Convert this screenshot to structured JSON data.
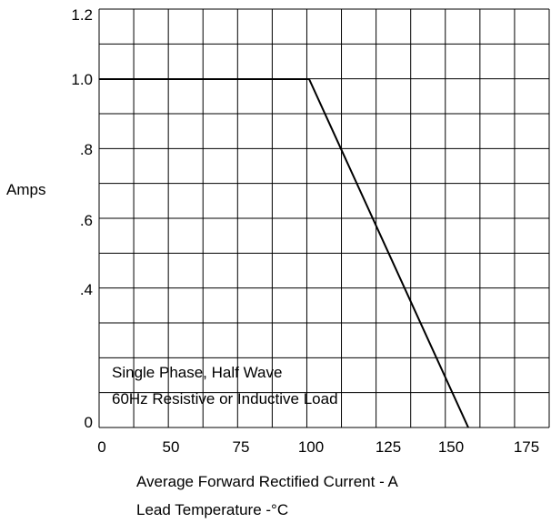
{
  "chart_data": {
    "type": "line",
    "ylabel": "Amps",
    "xlabel_lines": [
      "Average Forward Rectified Current  - A",
      "Lead Temperature  -°C"
    ],
    "annotation_lines": [
      "Single Phase, Half Wave",
      "60Hz Resistive or Inductive Load"
    ],
    "x_ticks": [
      "0",
      "50",
      "75",
      "100",
      "125",
      "150",
      "175"
    ],
    "y_ticks": [
      "0",
      ".4",
      ".6",
      ".8",
      "1.0",
      "1.2"
    ],
    "xlim": [
      0,
      175
    ],
    "ylim": [
      0,
      1.2
    ],
    "grid": true,
    "series": [
      {
        "x": [
          0,
          100,
          157
        ],
        "y": [
          1.0,
          1.0,
          0
        ]
      }
    ]
  }
}
